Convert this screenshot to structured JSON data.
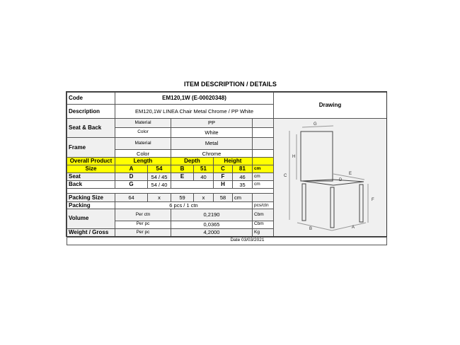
{
  "title": "ITEM DESCRIPTION / DETAILS",
  "code": {
    "label": "Code",
    "value": "EM120,1W (E-00020348)"
  },
  "description": {
    "label": "Description",
    "value": "EM120,1W LINEA Chair Metal Chrome / PP White"
  },
  "seat_back": {
    "label": "Seat & Back",
    "material_label": "Material",
    "material": "PP",
    "color_label": "Color",
    "color": "White"
  },
  "frame": {
    "label": "Frame",
    "material_label": "Material",
    "material": "Metal",
    "color_label": "Color",
    "color": "Chrome"
  },
  "overall": {
    "label1": "Overall Product",
    "label2": "Size",
    "length": "Length",
    "depth": "Depth",
    "height": "Height",
    "A": "A",
    "A_val": "54",
    "B": "B",
    "B_val": "51",
    "C": "C",
    "C_val": "81",
    "unit": "cm"
  },
  "seat": {
    "label": "Seat",
    "D": "D",
    "D_val": "54 / 45",
    "E": "E",
    "E_val": "40",
    "F": "F",
    "F_val": "46",
    "unit": "cm"
  },
  "back": {
    "label": "Back",
    "G": "G",
    "G_val": "54 / 40",
    "H": "H",
    "H_val": "35",
    "unit": "cm"
  },
  "packing_size": {
    "label": "Packing Size",
    "l": "64",
    "x1": "x",
    "w": "59",
    "x2": "x",
    "h": "58",
    "unit": "cm"
  },
  "packing": {
    "label": "Packing",
    "value": "6 pcs / 1 ctn",
    "unit": "pcs/ctn"
  },
  "volume": {
    "label": "Volume",
    "per_ctn_label": "Per ctn",
    "per_ctn": "0,2190",
    "per_pc_label": "Per pc",
    "per_pc": "0,0365",
    "unit": "Cbm"
  },
  "weight": {
    "label": "Weight / Gross",
    "per_label": "Per pc",
    "value": "4,2000",
    "unit": "Kg"
  },
  "date": "Date 03/03/2021",
  "drawing": {
    "header": "Drawing",
    "labels": {
      "A": "A",
      "B": "B",
      "C": "C",
      "D": "D",
      "E": "E",
      "F": "F",
      "G": "G",
      "H": "H"
    }
  },
  "colors": {
    "highlight": "#ffff00"
  }
}
